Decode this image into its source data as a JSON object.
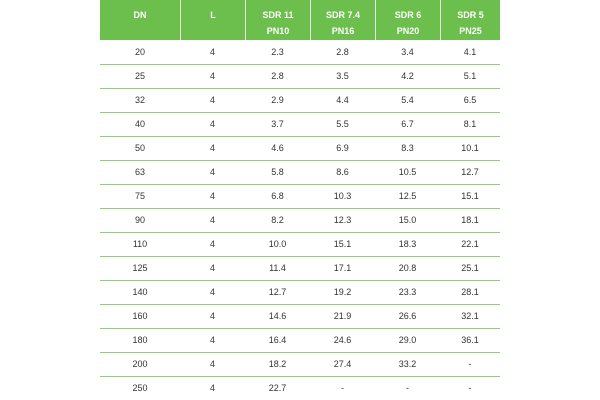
{
  "table": {
    "header": [
      [
        "DN"
      ],
      [
        "L"
      ],
      [
        "SDR 11",
        "PN10"
      ],
      [
        "SDR 7.4",
        "PN16"
      ],
      [
        "SDR 6",
        "PN20"
      ],
      [
        "SDR 5",
        "PN25"
      ]
    ],
    "rows": [
      [
        "20",
        "4",
        "2.3",
        "2.8",
        "3.4",
        "4.1"
      ],
      [
        "25",
        "4",
        "2.8",
        "3.5",
        "4.2",
        "5.1"
      ],
      [
        "32",
        "4",
        "2.9",
        "4.4",
        "5.4",
        "6.5"
      ],
      [
        "40",
        "4",
        "3.7",
        "5.5",
        "6.7",
        "8.1"
      ],
      [
        "50",
        "4",
        "4.6",
        "6.9",
        "8.3",
        "10.1"
      ],
      [
        "63",
        "4",
        "5.8",
        "8.6",
        "10.5",
        "12.7"
      ],
      [
        "75",
        "4",
        "6.8",
        "10.3",
        "12.5",
        "15.1"
      ],
      [
        "90",
        "4",
        "8.2",
        "12.3",
        "15.0",
        "18.1"
      ],
      [
        "110",
        "4",
        "10.0",
        "15.1",
        "18.3",
        "22.1"
      ],
      [
        "125",
        "4",
        "11.4",
        "17.1",
        "20.8",
        "25.1"
      ],
      [
        "140",
        "4",
        "12.7",
        "19.2",
        "23.3",
        "28.1"
      ],
      [
        "160",
        "4",
        "14.6",
        "21.9",
        "26.6",
        "32.1"
      ],
      [
        "180",
        "4",
        "16.4",
        "24.6",
        "29.0",
        "36.1"
      ],
      [
        "200",
        "4",
        "18.2",
        "27.4",
        "33.2",
        "-"
      ],
      [
        "250",
        "4",
        "22.7",
        "-",
        "-",
        "-"
      ]
    ]
  }
}
